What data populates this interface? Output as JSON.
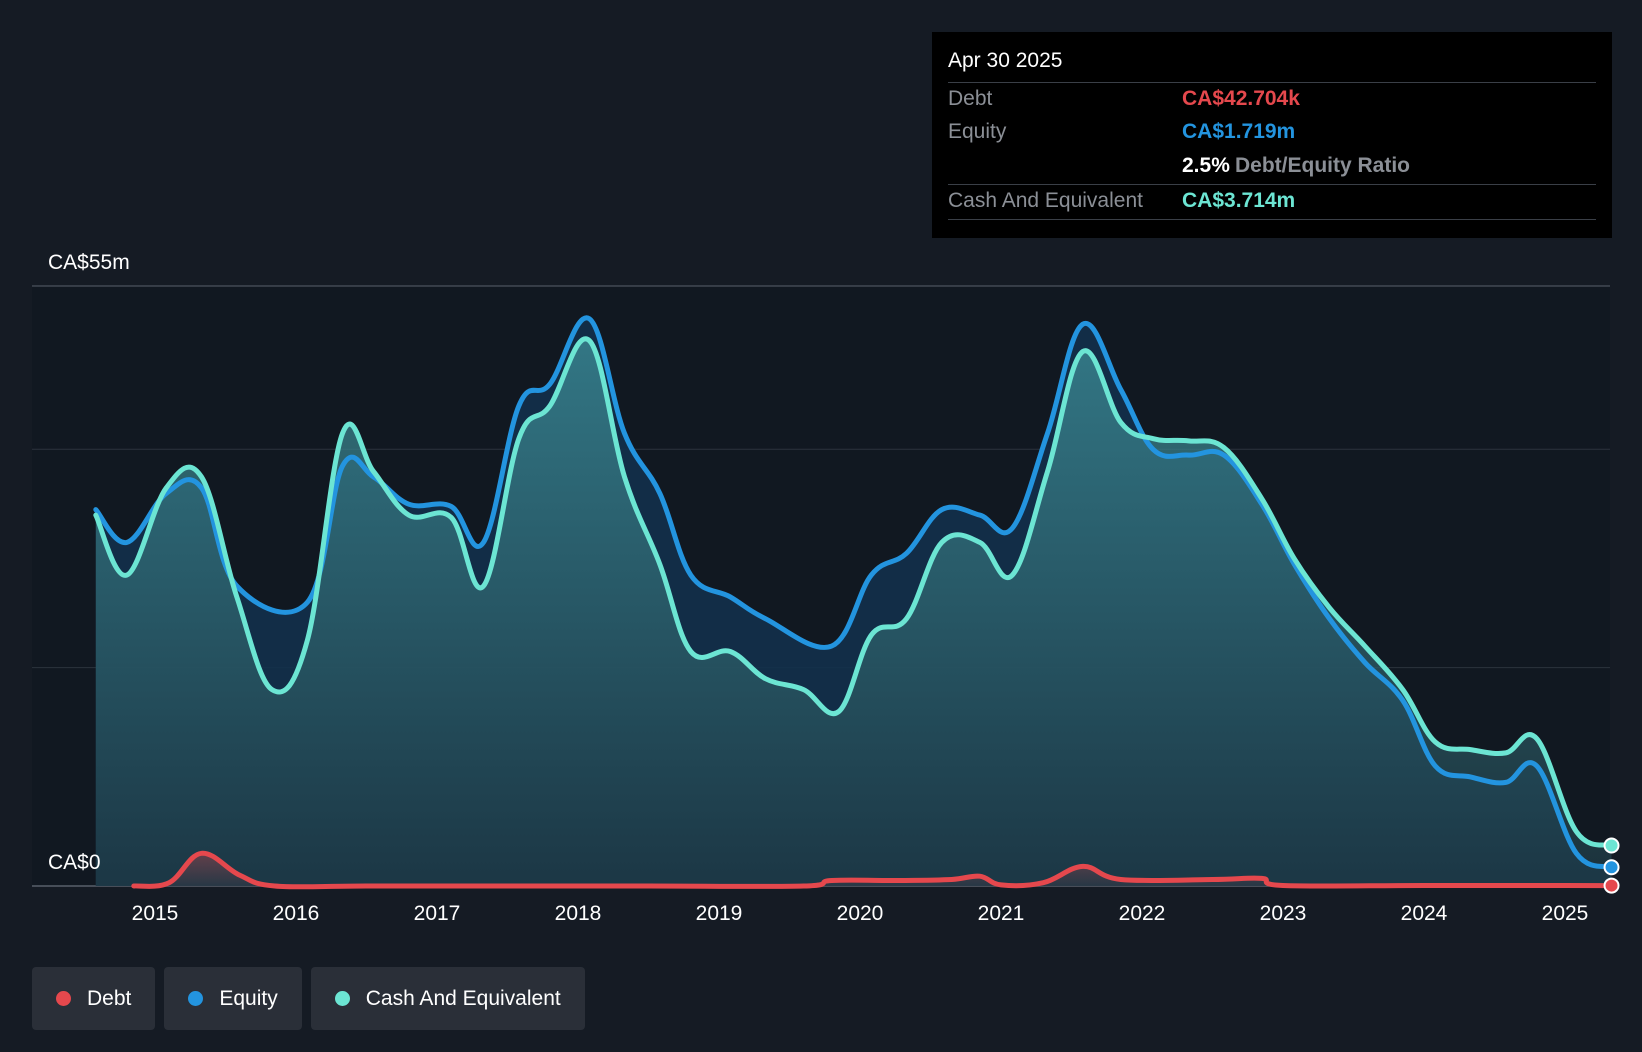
{
  "tooltip": {
    "date": "Apr 30 2025",
    "debt_label": "Debt",
    "debt_value": "CA$42.704k",
    "equity_label": "Equity",
    "equity_value": "CA$1.719m",
    "ratio_value": "2.5%",
    "ratio_label": "Debt/Equity Ratio",
    "cash_label": "Cash And Equivalent",
    "cash_value": "CA$3.714m"
  },
  "axis": {
    "y_top_label": "CA$55m",
    "y_bottom_label": "CA$0"
  },
  "legend": [
    {
      "label": "Debt",
      "color": "#e5484d"
    },
    {
      "label": "Equity",
      "color": "#2394df"
    },
    {
      "label": "Cash And Equivalent",
      "color": "#6ce5d3"
    }
  ],
  "chart_data": {
    "type": "line",
    "ylim": [
      0,
      55
    ],
    "y_unit": "CA$m",
    "x_ticks": [
      "2015",
      "2016",
      "2017",
      "2018",
      "2019",
      "2020",
      "2021",
      "2022",
      "2023",
      "2024",
      "2025"
    ],
    "grid": "horizontal",
    "legend_position": "bottom-left",
    "series": [
      {
        "name": "Debt",
        "color": "#e5484d",
        "points": [
          [
            2014.85,
            0.0
          ],
          [
            2015.1,
            0.3
          ],
          [
            2015.33,
            3.0
          ],
          [
            2015.6,
            1.0
          ],
          [
            2015.85,
            0.0
          ],
          [
            2016.5,
            0.0
          ],
          [
            2017.5,
            0.0
          ],
          [
            2018.5,
            0.0
          ],
          [
            2019.6,
            0.0
          ],
          [
            2019.8,
            0.5
          ],
          [
            2020.3,
            0.5
          ],
          [
            2020.65,
            0.6
          ],
          [
            2020.85,
            0.9
          ],
          [
            2021.0,
            0.1
          ],
          [
            2021.3,
            0.3
          ],
          [
            2021.58,
            1.8
          ],
          [
            2021.85,
            0.6
          ],
          [
            2022.5,
            0.6
          ],
          [
            2022.85,
            0.7
          ],
          [
            2023.0,
            0.05
          ],
          [
            2024.0,
            0.05
          ],
          [
            2025.0,
            0.05
          ],
          [
            2025.33,
            0.04
          ]
        ]
      },
      {
        "name": "Equity",
        "color": "#2394df",
        "points": [
          [
            2014.58,
            34.5
          ],
          [
            2014.8,
            31.5
          ],
          [
            2015.08,
            36.0
          ],
          [
            2015.33,
            36.5
          ],
          [
            2015.58,
            27.5
          ],
          [
            2016.08,
            26.0
          ],
          [
            2016.33,
            38.5
          ],
          [
            2016.55,
            37.5
          ],
          [
            2016.8,
            35.0
          ],
          [
            2017.1,
            34.8
          ],
          [
            2017.33,
            31.5
          ],
          [
            2017.58,
            44.0
          ],
          [
            2017.8,
            46.0
          ],
          [
            2018.08,
            52.0
          ],
          [
            2018.33,
            41.5
          ],
          [
            2018.58,
            36.0
          ],
          [
            2018.8,
            28.5
          ],
          [
            2019.08,
            26.5
          ],
          [
            2019.33,
            24.5
          ],
          [
            2019.8,
            22.0
          ],
          [
            2020.08,
            28.5
          ],
          [
            2020.33,
            30.5
          ],
          [
            2020.58,
            34.5
          ],
          [
            2020.85,
            34.0
          ],
          [
            2021.08,
            32.8
          ],
          [
            2021.33,
            41.5
          ],
          [
            2021.58,
            51.5
          ],
          [
            2021.85,
            45.5
          ],
          [
            2022.08,
            40.0
          ],
          [
            2022.33,
            39.5
          ],
          [
            2022.58,
            39.5
          ],
          [
            2022.85,
            35.0
          ],
          [
            2023.08,
            29.5
          ],
          [
            2023.33,
            24.5
          ],
          [
            2023.58,
            20.5
          ],
          [
            2023.85,
            17.0
          ],
          [
            2024.08,
            11.0
          ],
          [
            2024.33,
            10.0
          ],
          [
            2024.58,
            9.5
          ],
          [
            2024.8,
            11.0
          ],
          [
            2025.08,
            3.0
          ],
          [
            2025.33,
            1.72
          ]
        ]
      },
      {
        "name": "Cash And Equivalent",
        "color": "#6ce5d3",
        "points": [
          [
            2014.58,
            34.0
          ],
          [
            2014.8,
            28.5
          ],
          [
            2015.08,
            36.5
          ],
          [
            2015.33,
            37.5
          ],
          [
            2015.58,
            26.5
          ],
          [
            2015.83,
            18.0
          ],
          [
            2016.08,
            22.5
          ],
          [
            2016.33,
            41.5
          ],
          [
            2016.55,
            38.0
          ],
          [
            2016.8,
            34.0
          ],
          [
            2017.1,
            33.8
          ],
          [
            2017.33,
            27.5
          ],
          [
            2017.58,
            41.0
          ],
          [
            2017.8,
            44.0
          ],
          [
            2018.08,
            50.0
          ],
          [
            2018.33,
            37.5
          ],
          [
            2018.58,
            29.5
          ],
          [
            2018.8,
            21.5
          ],
          [
            2019.08,
            21.5
          ],
          [
            2019.33,
            19.0
          ],
          [
            2019.6,
            18.0
          ],
          [
            2019.85,
            16.0
          ],
          [
            2020.08,
            23.0
          ],
          [
            2020.33,
            24.5
          ],
          [
            2020.58,
            31.5
          ],
          [
            2020.85,
            31.5
          ],
          [
            2021.08,
            28.5
          ],
          [
            2021.33,
            38.0
          ],
          [
            2021.58,
            49.0
          ],
          [
            2021.85,
            42.5
          ],
          [
            2022.08,
            41.0
          ],
          [
            2022.33,
            40.8
          ],
          [
            2022.58,
            40.2
          ],
          [
            2022.85,
            35.5
          ],
          [
            2023.08,
            30.0
          ],
          [
            2023.33,
            25.5
          ],
          [
            2023.58,
            22.0
          ],
          [
            2023.85,
            18.0
          ],
          [
            2024.08,
            13.2
          ],
          [
            2024.33,
            12.5
          ],
          [
            2024.58,
            12.2
          ],
          [
            2024.8,
            13.5
          ],
          [
            2025.08,
            5.0
          ],
          [
            2025.33,
            3.71
          ]
        ]
      }
    ]
  }
}
